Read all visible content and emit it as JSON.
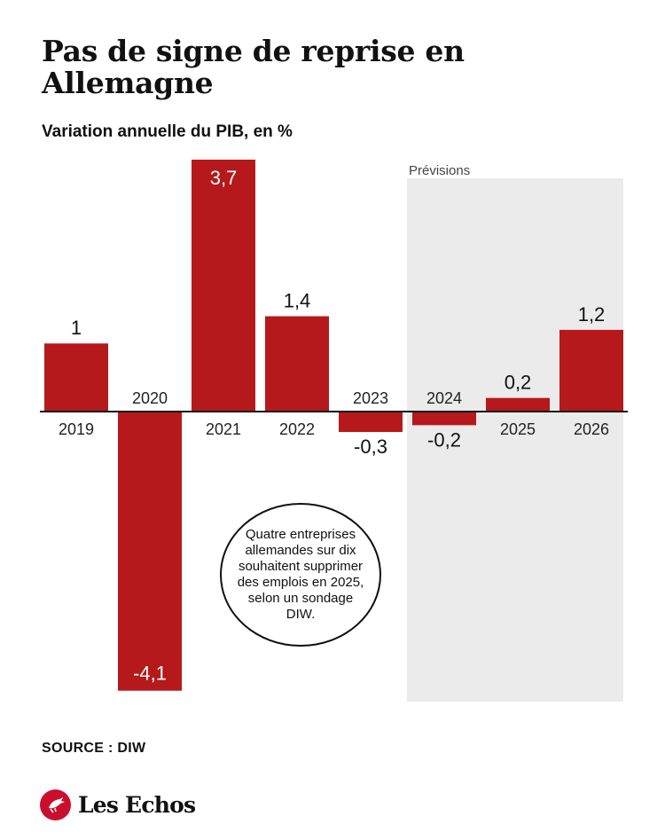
{
  "title": "Pas de signe de reprise en Allemagne",
  "subtitle": "Variation annuelle du PIB, en %",
  "source": "SOURCE : DIW",
  "logo_text": "Les Echos",
  "callout": "Quatre entreprises allemandes sur dix souhaitent supprimer des emplois en 2025, selon un sondage DIW.",
  "colors": {
    "bar": "#b5191b",
    "forecast_band": "#ebebeb",
    "axis": "#111111",
    "brand": "#c8102e"
  },
  "chart_data": {
    "type": "bar",
    "categories": [
      "2019",
      "2020",
      "2021",
      "2022",
      "2023",
      "2024",
      "2025",
      "2026"
    ],
    "values": [
      1,
      -4.1,
      3.7,
      1.4,
      -0.3,
      -0.2,
      0.2,
      1.2
    ],
    "value_labels": [
      "1",
      "-4,1",
      "3,7",
      "1,4",
      "-0,3",
      "-0,2",
      "0,2",
      "1,2"
    ],
    "forecast_label": "Prévisions",
    "forecast_categories": [
      "2024",
      "2025",
      "2026"
    ],
    "title": "Pas de signe de reprise en Allemagne",
    "subtitle": "Variation annuelle du PIB, en %",
    "ylim": [
      -4.1,
      3.7
    ],
    "grid": false,
    "legend": "none"
  }
}
